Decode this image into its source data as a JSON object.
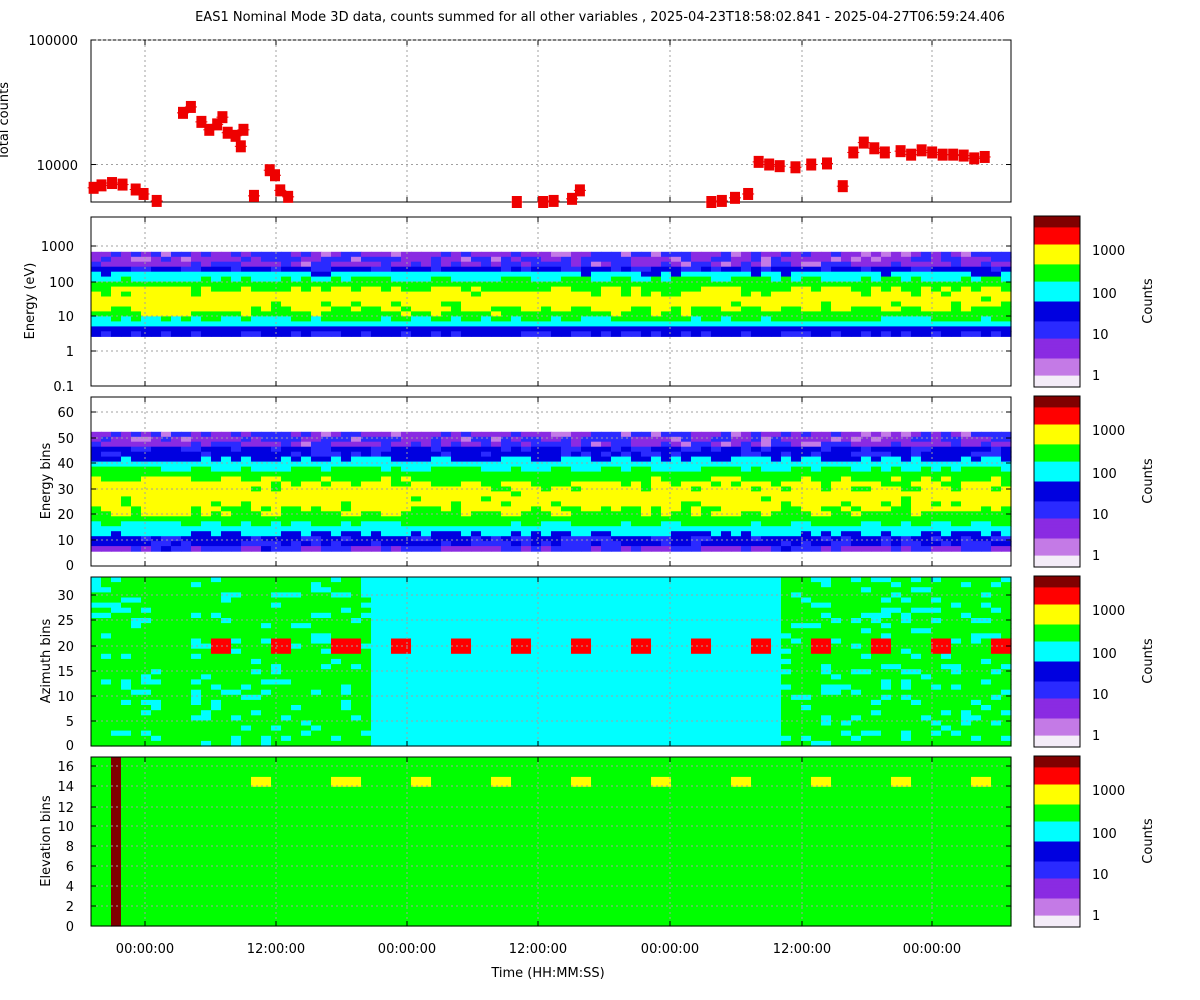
{
  "figure": {
    "title": "EAS1  Nominal Mode 3D data, counts summed for all other variables ,  2025-04-23T18:58:02.841 - 2025-04-27T06:59:24.406",
    "xlabel": "Time (HH:MM:SS)",
    "x_tick_labels": [
      "00:00:00",
      "12:00:00",
      "00:00:00",
      "12:00:00",
      "00:00:00",
      "12:00:00",
      "00:00:00"
    ]
  },
  "colors": {
    "axis": "#000000",
    "grid": "#a0a0a0",
    "points": "#ee0000",
    "colormap": [
      "#f4ecf8",
      "#c47ae6",
      "#8a2be2",
      "#2a2aff",
      "#0000e0",
      "#00ffff",
      "#00ff00",
      "#ffff00",
      "#ff0000",
      "#800000"
    ]
  },
  "chart_data": [
    {
      "type": "scatter",
      "ylabel": "Total counts",
      "yscale": "log",
      "ylim": [
        5000,
        100000
      ],
      "y_tick_labels": [
        "100000",
        "10000"
      ],
      "grid": true,
      "points": [
        [
          0.01,
          6500
        ],
        [
          0.04,
          6800
        ],
        [
          0.08,
          7100
        ],
        [
          0.12,
          6900
        ],
        [
          0.17,
          6300
        ],
        [
          0.2,
          5800
        ],
        [
          0.25,
          5100
        ],
        [
          0.35,
          26000
        ],
        [
          0.38,
          29000
        ],
        [
          0.42,
          22000
        ],
        [
          0.45,
          19000
        ],
        [
          0.48,
          21000
        ],
        [
          0.5,
          24000
        ],
        [
          0.52,
          18000
        ],
        [
          0.55,
          17000
        ],
        [
          0.57,
          14000
        ],
        [
          0.58,
          19000
        ],
        [
          0.62,
          5600
        ],
        [
          0.68,
          9000
        ],
        [
          0.7,
          8200
        ],
        [
          0.72,
          6200
        ],
        [
          0.75,
          5500
        ],
        [
          1.62,
          5000
        ],
        [
          1.72,
          5000
        ],
        [
          1.76,
          5100
        ],
        [
          1.83,
          5300
        ],
        [
          1.86,
          6200
        ],
        [
          2.36,
          5000
        ],
        [
          2.4,
          5100
        ],
        [
          2.45,
          5400
        ],
        [
          2.5,
          5800
        ],
        [
          2.54,
          10500
        ],
        [
          2.58,
          10000
        ],
        [
          2.62,
          9700
        ],
        [
          2.68,
          9500
        ],
        [
          2.74,
          10000
        ],
        [
          2.8,
          10200
        ],
        [
          2.86,
          6700
        ],
        [
          2.9,
          12500
        ],
        [
          2.94,
          15000
        ],
        [
          2.98,
          13500
        ],
        [
          3.02,
          12500
        ],
        [
          3.08,
          12800
        ],
        [
          3.12,
          12000
        ],
        [
          3.16,
          13000
        ],
        [
          3.2,
          12500
        ],
        [
          3.24,
          12000
        ],
        [
          3.28,
          12000
        ],
        [
          3.32,
          11800
        ],
        [
          3.36,
          11200
        ],
        [
          3.4,
          11500
        ]
      ]
    },
    {
      "type": "heatmap",
      "ylabel": "Energy (eV)",
      "yscale": "log",
      "ylim": [
        0.1,
        10000
      ],
      "y_tick_labels": [
        "1000",
        "100",
        "10",
        "1",
        "0.1"
      ],
      "colorbar": {
        "label": "Counts",
        "tick_labels": [
          "1000",
          "100",
          "10",
          "1"
        ]
      }
    },
    {
      "type": "heatmap",
      "ylabel": "Energy bins",
      "ylim": [
        0,
        64
      ],
      "y_tick_labels": [
        "60",
        "50",
        "40",
        "30",
        "20",
        "10",
        "0"
      ],
      "colorbar": {
        "label": "Counts",
        "tick_labels": [
          "1000",
          "100",
          "10",
          "1"
        ]
      }
    },
    {
      "type": "heatmap",
      "ylabel": "Azimuth bins",
      "ylim": [
        0,
        33
      ],
      "y_tick_labels": [
        "30",
        "25",
        "20",
        "15",
        "10",
        "5",
        "0"
      ],
      "colorbar": {
        "label": "Counts",
        "tick_labels": [
          "1000",
          "100",
          "10",
          "1"
        ]
      }
    },
    {
      "type": "heatmap",
      "ylabel": "Elevation bins",
      "ylim": [
        0,
        17
      ],
      "y_tick_labels": [
        "16",
        "14",
        "12",
        "10",
        "8",
        "6",
        "4",
        "2",
        "0"
      ],
      "colorbar": {
        "label": "Counts",
        "tick_labels": [
          "1000",
          "100",
          "10",
          "1"
        ]
      }
    }
  ]
}
